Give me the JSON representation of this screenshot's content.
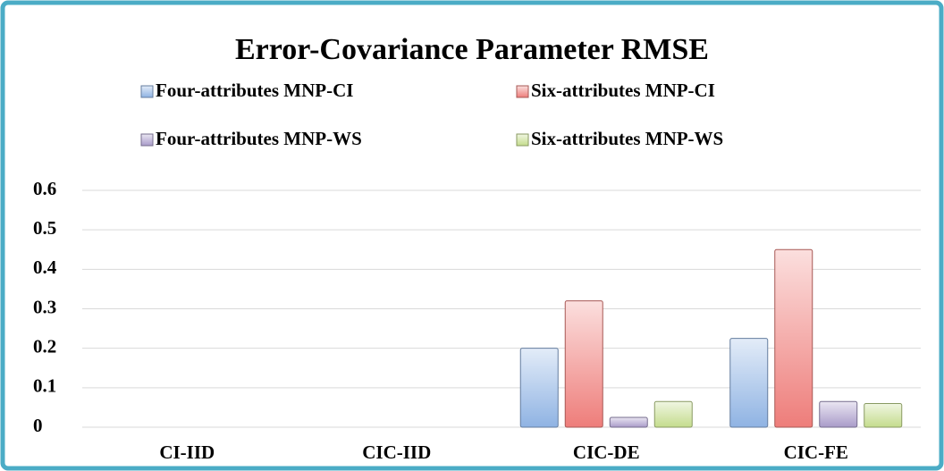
{
  "chart_data": {
    "type": "bar",
    "title": "Error-Covariance Parameter RMSE",
    "categories": [
      "CI-IID",
      "CIC-IID",
      "CIC-DE",
      "CIC-FE"
    ],
    "series": [
      {
        "name": "Four-attributes MNP-CI",
        "color": "#8fb3e3",
        "values": [
          null,
          null,
          0.2,
          0.225
        ]
      },
      {
        "name": "Six-attributes MNP-CI",
        "color": "#ee7d7a",
        "values": [
          null,
          null,
          0.32,
          0.45
        ]
      },
      {
        "name": "Four-attributes MNP-WS",
        "color": "#a99bc9",
        "values": [
          null,
          null,
          0.025,
          0.065
        ]
      },
      {
        "name": "Six-attributes MNP-WS",
        "color": "#c4dc8c",
        "values": [
          null,
          null,
          0.065,
          0.06
        ]
      }
    ],
    "ylim": [
      0,
      0.6
    ],
    "yticks": [
      0,
      0.1,
      0.2,
      0.3,
      0.4,
      0.5,
      0.6
    ],
    "grid": true,
    "legend": "top"
  }
}
